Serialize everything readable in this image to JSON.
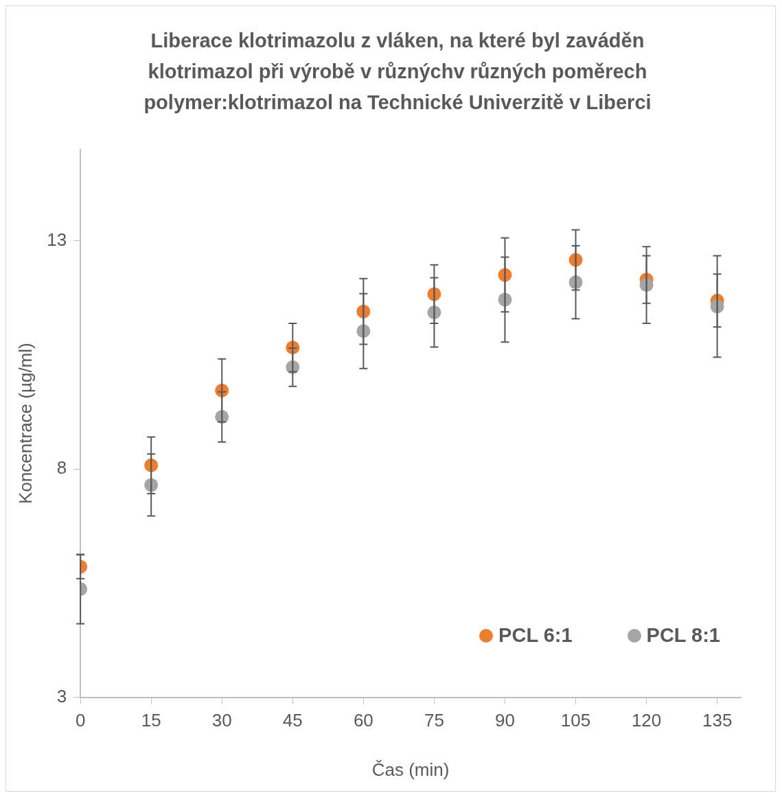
{
  "chart_data": {
    "type": "scatter",
    "title": "Liberace klotrimazolu z vláken, na které byl zaváděn klotrimazol při výrobě v různýchv různých poměrech polymer:klotrimazol na Technické Univerzitě v Liberci",
    "xlabel": "Čas (min)",
    "ylabel": "Koncentrace (µg/ml)",
    "x": [
      0,
      15,
      30,
      45,
      60,
      75,
      90,
      105,
      120,
      135
    ],
    "series": [
      {
        "name": "PCL 6:1",
        "color": "#ed7d31",
        "values": [
          5.86,
          8.08,
          9.72,
          10.66,
          11.45,
          11.83,
          12.25,
          12.58,
          12.15,
          11.69
        ],
        "errors": [
          0.26,
          0.62,
          0.69,
          0.53,
          0.72,
          0.64,
          0.81,
          0.66,
          0.52,
          0.58
        ]
      },
      {
        "name": "PCL 8:1",
        "color": "#a5a5a5",
        "values": [
          5.37,
          7.65,
          9.14,
          10.23,
          11.02,
          11.43,
          11.71,
          12.09,
          12.03,
          11.56
        ],
        "errors": [
          0.76,
          0.68,
          0.55,
          0.42,
          0.82,
          0.76,
          0.93,
          0.8,
          0.84,
          1.11
        ]
      }
    ],
    "xlim": [
      0,
      140
    ],
    "xticks": [
      0,
      15,
      30,
      45,
      60,
      75,
      90,
      105,
      120,
      135
    ],
    "ylim": [
      3,
      15
    ],
    "yticks": [
      3,
      8,
      13
    ],
    "grid": false,
    "legend": "bottom right",
    "marker": "circle"
  }
}
